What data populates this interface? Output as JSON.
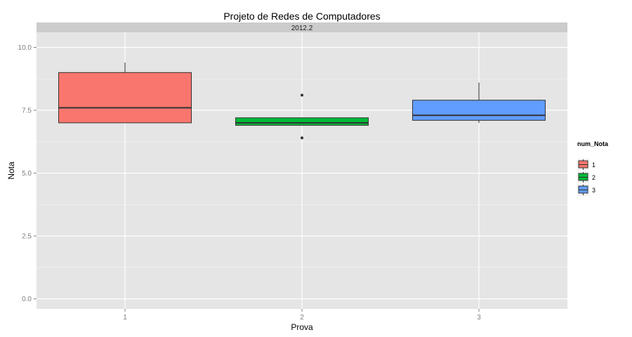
{
  "chart_data": {
    "type": "boxplot",
    "title": "Projeto de Redes de Computadores",
    "facet_label": "2012.2",
    "xlabel": "Prova",
    "ylabel": "Nota",
    "categories": [
      "1",
      "2",
      "3"
    ],
    "ylim": [
      -0.4,
      10.6
    ],
    "y_ticks": [
      0.0,
      2.5,
      5.0,
      7.5,
      10.0
    ],
    "y_tick_labels": [
      "0.0",
      "2.5",
      "5.0",
      "7.5",
      "10.0"
    ],
    "grid": true,
    "legend": {
      "title": "num_Nota",
      "position": "right",
      "entries": [
        "1",
        "2",
        "3"
      ]
    },
    "boxes": [
      {
        "category": "1",
        "whisker_low": 7.0,
        "q1": 7.0,
        "median": 7.6,
        "q3": 9.0,
        "whisker_high": 9.4,
        "outliers": [],
        "color": "#F8766D"
      },
      {
        "category": "2",
        "whisker_low": 6.9,
        "q1": 6.9,
        "median": 7.0,
        "q3": 7.2,
        "whisker_high": 7.2,
        "outliers": [
          8.1,
          6.4
        ],
        "color": "#00BA38"
      },
      {
        "category": "3",
        "whisker_low": 7.0,
        "q1": 7.1,
        "median": 7.3,
        "q3": 7.9,
        "whisker_high": 8.6,
        "outliers": [],
        "color": "#619CFF"
      }
    ]
  }
}
